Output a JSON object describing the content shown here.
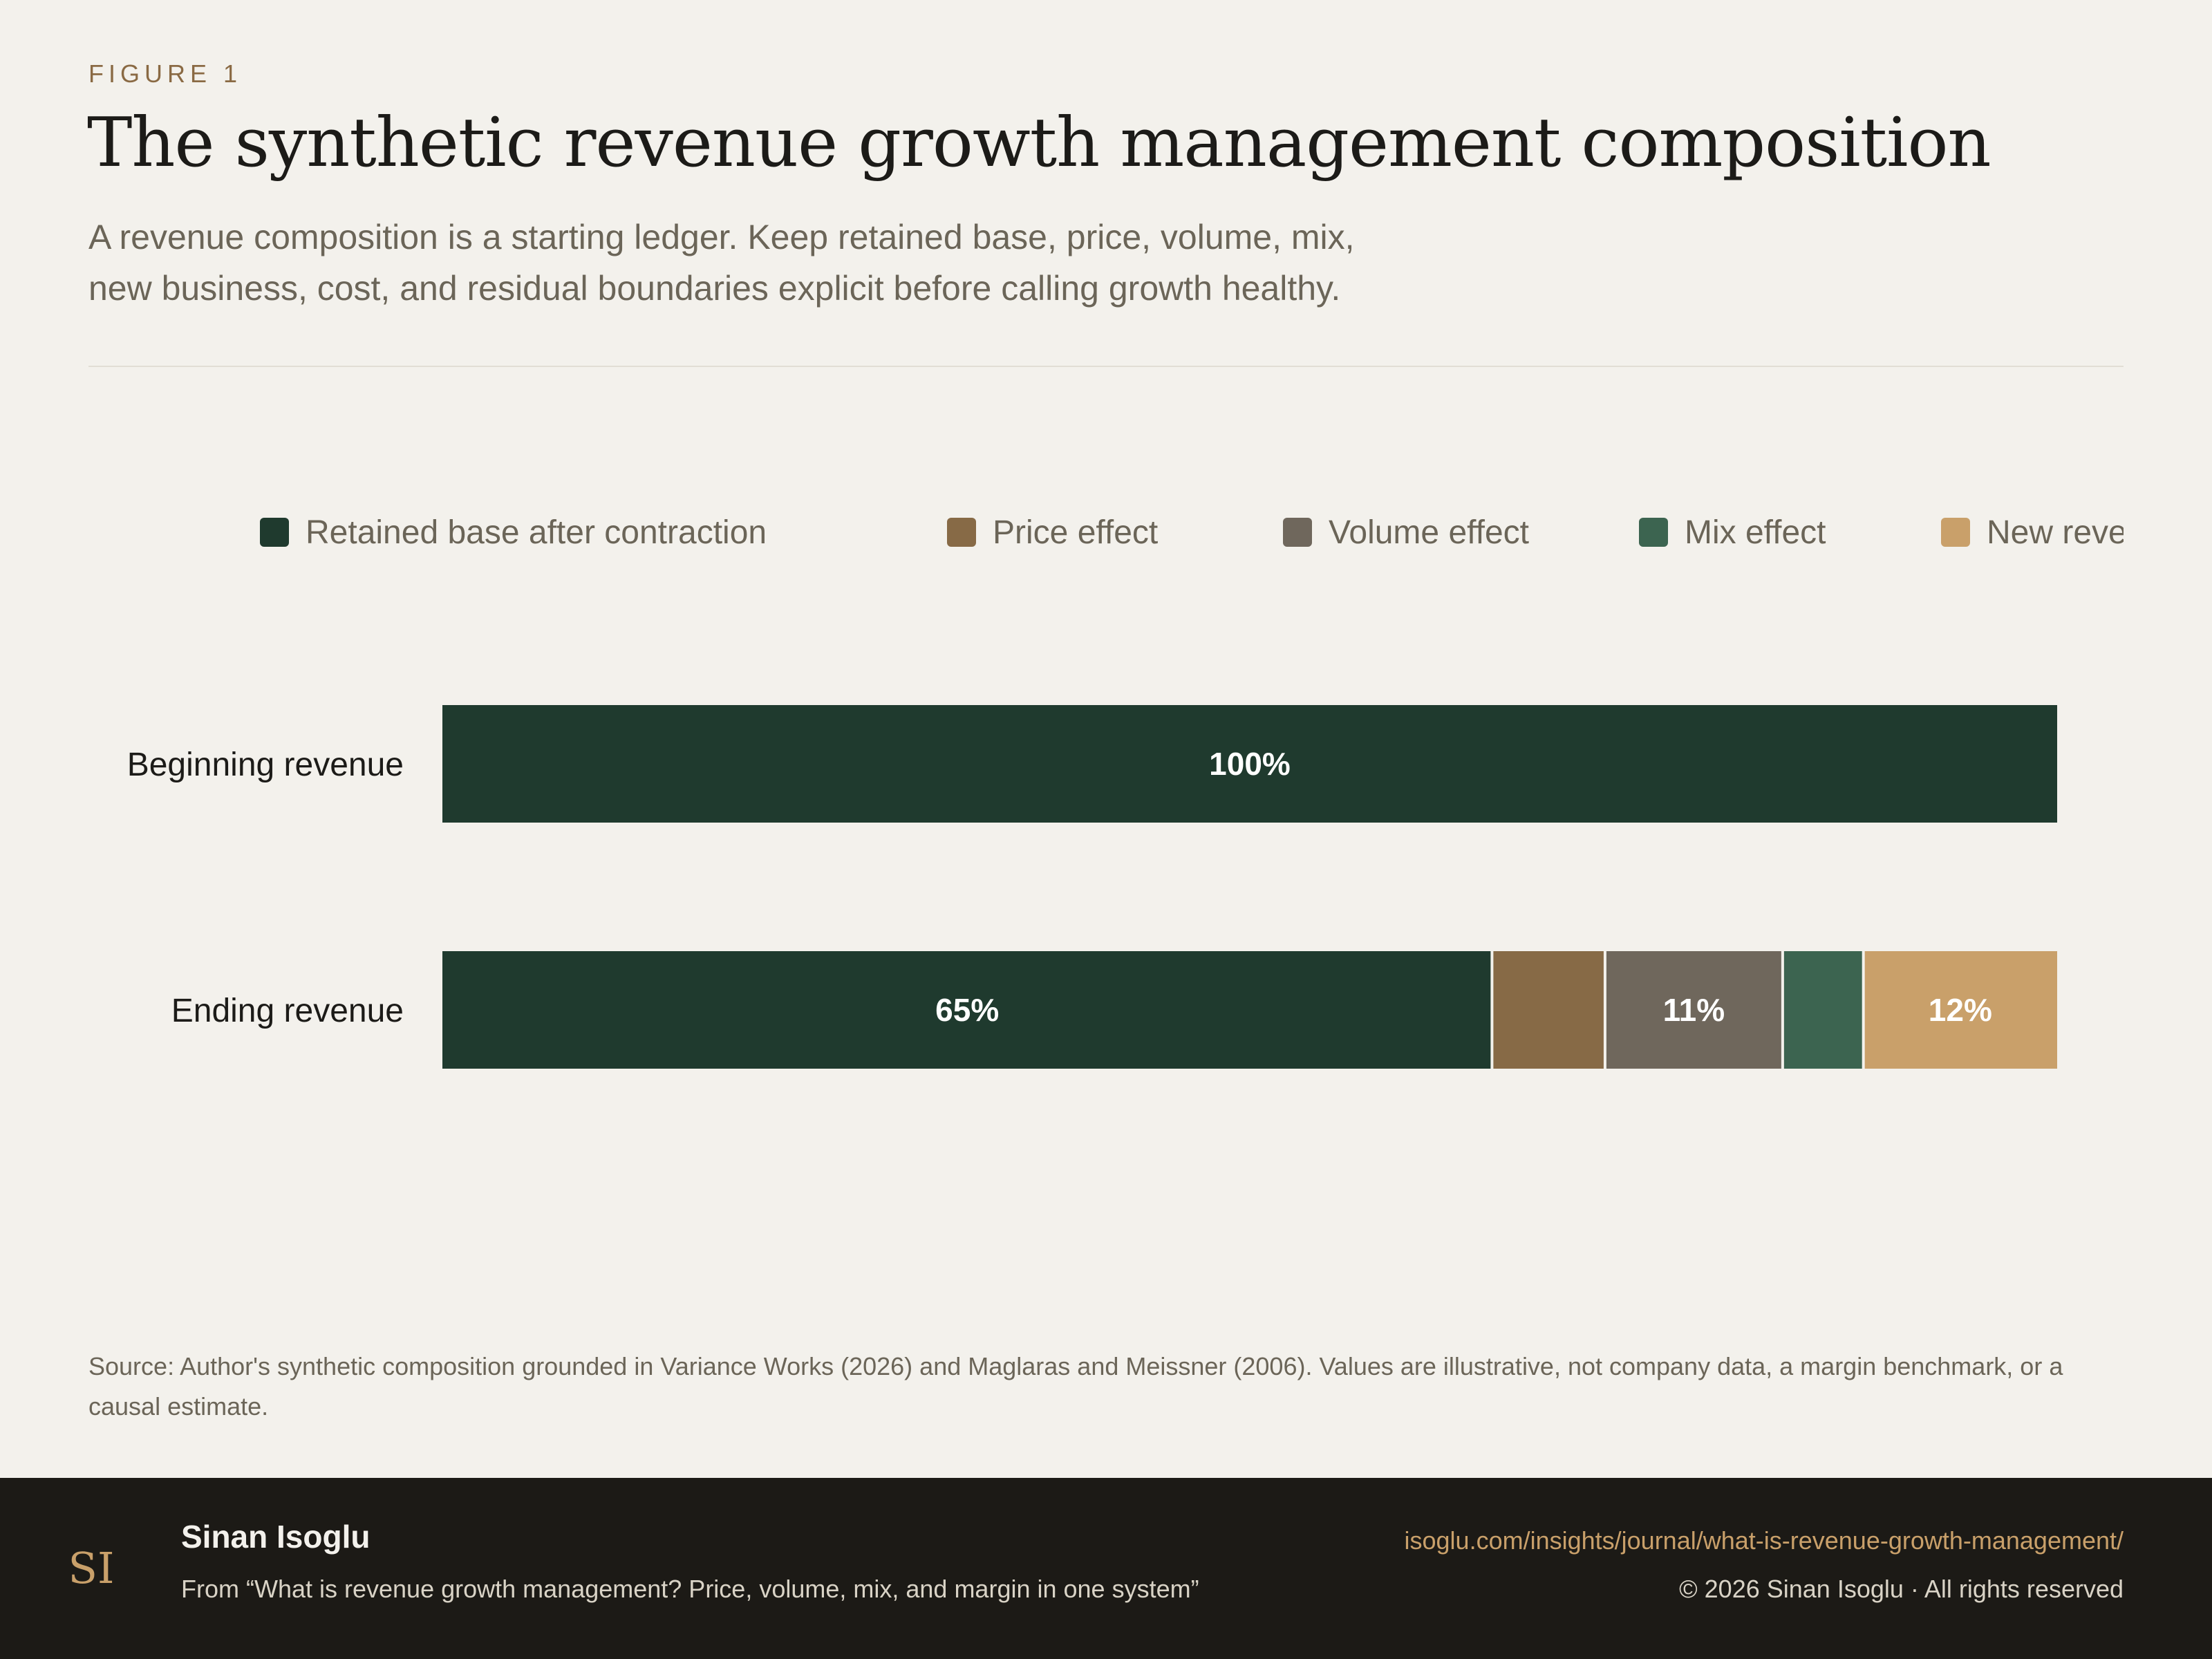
{
  "header": {
    "eyebrow": "FIGURE 1",
    "title": "The synthetic revenue growth management composition",
    "subtitle": "A revenue composition is a starting ledger. Keep retained base, price, volume, mix, new business, cost, and residual boundaries explicit before calling growth healthy."
  },
  "legend": {
    "items": [
      {
        "label": "Retained base after contraction",
        "color": "#1f3a2e"
      },
      {
        "label": "Price effect",
        "color": "#876a46"
      },
      {
        "label": "Volume effect",
        "color": "#6f675c"
      },
      {
        "label": "Mix effect",
        "color": "#3c6450"
      },
      {
        "label": "New reven",
        "color": "#c9a06a"
      }
    ]
  },
  "chart_data": {
    "type": "bar",
    "orientation": "horizontal",
    "stacked": true,
    "categories": [
      "Beginning revenue",
      "Ending revenue"
    ],
    "xlim": [
      0,
      100
    ],
    "series": [
      {
        "name": "Retained base after contraction",
        "color": "#1f3a2e",
        "values": [
          100,
          65
        ],
        "labels": [
          "100%",
          "65%"
        ]
      },
      {
        "name": "Price effect",
        "color": "#876a46",
        "values": [
          0,
          7
        ],
        "labels": [
          "",
          ""
        ]
      },
      {
        "name": "Volume effect",
        "color": "#6f675c",
        "values": [
          0,
          11
        ],
        "labels": [
          "",
          "11%"
        ]
      },
      {
        "name": "Mix effect",
        "color": "#3c6450",
        "values": [
          0,
          5
        ],
        "labels": [
          "",
          ""
        ]
      },
      {
        "name": "New reven",
        "color": "#c9a06a",
        "values": [
          0,
          12
        ],
        "labels": [
          "",
          "12%"
        ]
      }
    ],
    "grid": false,
    "legend_position": "top"
  },
  "source": "Source: Author's synthetic composition grounded in Variance Works (2026) and Maglaras and Meissner (2006). Values are illustrative, not company data, a margin benchmark, or a causal estimate.",
  "footer": {
    "logo_text": "SI",
    "author": "Sinan Isoglu",
    "from": "From “What is revenue growth management? Price, volume, mix, and margin in one system”",
    "url": "isoglu.com/insights/journal/what-is-revenue-growth-management/",
    "copyright": "© 2026 Sinan Isoglu · All rights reserved",
    "gold": "#c9a06a"
  }
}
